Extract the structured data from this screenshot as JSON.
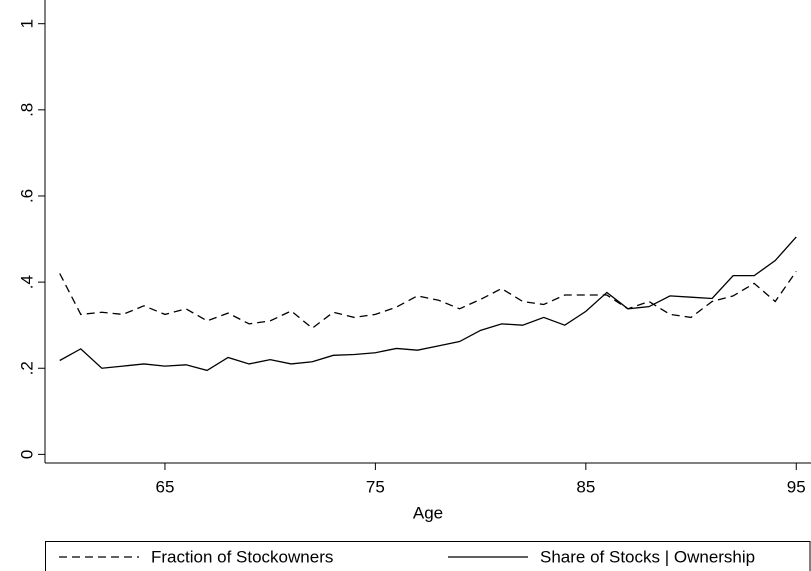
{
  "chart_data": {
    "type": "line",
    "x_label": "Age",
    "x": [
      60,
      61,
      62,
      63,
      64,
      65,
      66,
      67,
      68,
      69,
      70,
      71,
      72,
      73,
      74,
      75,
      76,
      77,
      78,
      79,
      80,
      81,
      82,
      83,
      84,
      85,
      86,
      87,
      88,
      89,
      90,
      91,
      92,
      93,
      94,
      95
    ],
    "series": [
      {
        "name": "Fraction of Stockowners",
        "color": "#000000",
        "dash": true,
        "values": [
          0.42,
          0.325,
          0.33,
          0.325,
          0.345,
          0.325,
          0.338,
          0.31,
          0.328,
          0.303,
          0.31,
          0.333,
          0.293,
          0.33,
          0.318,
          0.325,
          0.342,
          0.368,
          0.358,
          0.338,
          0.36,
          0.385,
          0.355,
          0.348,
          0.37,
          0.37,
          0.37,
          0.338,
          0.355,
          0.325,
          0.318,
          0.355,
          0.368,
          0.397,
          0.355,
          0.425
        ]
      },
      {
        "name": "Share of Stocks | Ownership",
        "color": "#000000",
        "dash": false,
        "values": [
          0.218,
          0.245,
          0.2,
          0.205,
          0.21,
          0.205,
          0.208,
          0.195,
          0.225,
          0.21,
          0.22,
          0.21,
          0.215,
          0.23,
          0.232,
          0.236,
          0.246,
          0.242,
          0.252,
          0.262,
          0.288,
          0.303,
          0.3,
          0.318,
          0.3,
          0.332,
          0.376,
          0.338,
          0.343,
          0.368,
          0.365,
          0.362,
          0.415,
          0.415,
          0.45,
          0.505
        ]
      }
    ],
    "xlim": [
      59.3,
      95.7
    ],
    "xticks": [
      65,
      75,
      85,
      95
    ],
    "ylim": [
      -0.02,
      1.055
    ],
    "yticks": [
      0,
      {
        "value": 0.2,
        "label": ".2"
      },
      {
        "value": 0.4,
        "label": ".4"
      },
      {
        "value": 0.6,
        "label": ".6"
      },
      {
        "value": 0.8,
        "label": ".8"
      },
      1
    ],
    "legend": "bottom"
  }
}
